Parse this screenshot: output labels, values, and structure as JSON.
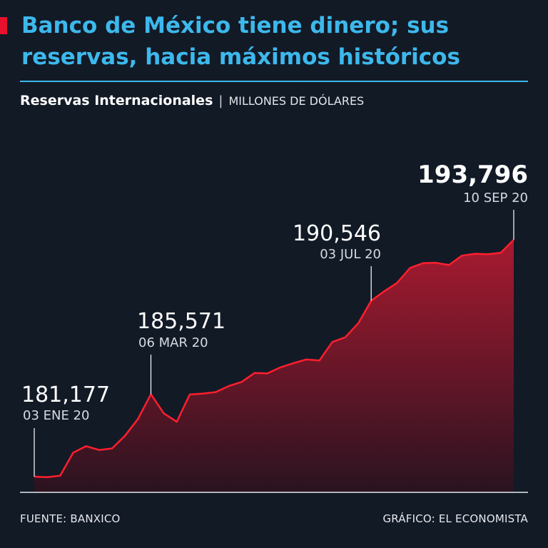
{
  "header": {
    "title": "Banco de México tiene dinero; sus reservas, hacia máximos históricos",
    "subtitle_bold": "Reservas Internacionales",
    "subtitle_sep": "|",
    "subtitle_unit": "MILLONES DE DÓLARES"
  },
  "colors": {
    "background": "#121a26",
    "accent": "#e8112d",
    "title": "#3db8ec",
    "rule": "#3db8ec",
    "line": "#ff1f2d",
    "fill_top": "#a81a30",
    "fill_bottom": "#2a1320",
    "text": "#ffffff",
    "muted_text": "#d7dbe1"
  },
  "chart_data": {
    "type": "area",
    "x_start": "03 ENE 20",
    "x_end": "10 SEP 20",
    "values": [
      181177,
      181150,
      181230,
      182450,
      182800,
      182600,
      182680,
      183350,
      184250,
      185571,
      184550,
      184100,
      185550,
      185600,
      185680,
      186000,
      186220,
      186700,
      186680,
      187000,
      187220,
      187420,
      187360,
      188350,
      188600,
      189350,
      190546,
      191050,
      191500,
      192300,
      192550,
      192570,
      192450,
      192950,
      193050,
      193030,
      193100,
      193796
    ],
    "annotations": [
      {
        "value": "181,177",
        "date": "03 ENE 20",
        "index": 0
      },
      {
        "value": "185,571",
        "date": "06 MAR 20",
        "index": 9
      },
      {
        "value": "190,546",
        "date": "03 JUL 20",
        "index": 26
      },
      {
        "value": "193,796",
        "date": "10 SEP 20",
        "index": 37
      }
    ]
  },
  "footer": {
    "source": "FUENTE: BANXICO",
    "credit": "GRÁFICO: EL ECONOMISTA"
  }
}
